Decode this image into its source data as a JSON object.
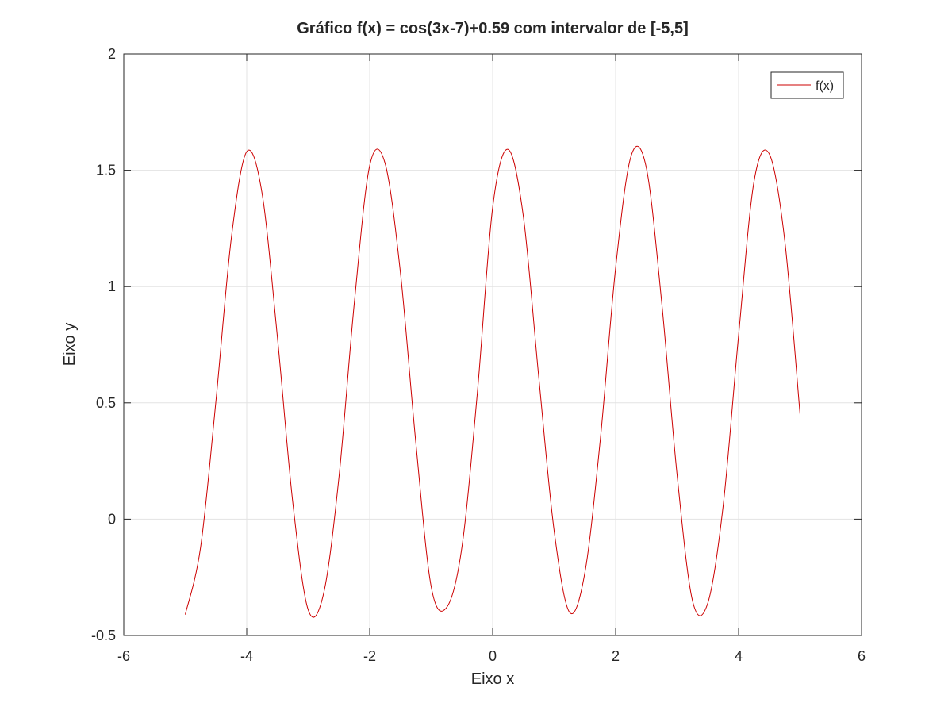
{
  "chart_data": {
    "type": "line",
    "title": "Gráfico f(x) = cos(3x-7)+0.59 com intervalor de [-5,5]",
    "xlabel": "Eixo x",
    "ylabel": "Eixo y",
    "xlim": [
      -6,
      6
    ],
    "ylim": [
      -0.5,
      2
    ],
    "x_ticks": [
      -6,
      -4,
      -2,
      0,
      2,
      4,
      6
    ],
    "x_tick_labels": [
      "-6",
      "-4",
      "-2",
      "0",
      "2",
      "4",
      "6"
    ],
    "y_ticks": [
      -0.5,
      0,
      0.5,
      1,
      1.5,
      2
    ],
    "y_tick_labels": [
      "-0.5",
      "0",
      "0.5",
      "1",
      "1.5",
      "2"
    ],
    "grid": true,
    "legend": {
      "placement": "top-right",
      "entries": [
        "f(x)"
      ]
    },
    "series": [
      {
        "name": "f(x)",
        "color": "#cc0000",
        "function": "cos(3x-7)+0.59",
        "domain": [
          -5,
          5
        ],
        "x": [
          -5,
          -4.75,
          -4.5,
          -4.25,
          -4,
          -3.75,
          -3.5,
          -3.25,
          -3,
          -2.75,
          -2.5,
          -2.25,
          -2,
          -1.75,
          -1.5,
          -1.25,
          -1,
          -0.75,
          -0.5,
          -0.25,
          0,
          0.25,
          0.5,
          0.75,
          1,
          1.25,
          1.5,
          1.75,
          2,
          2.25,
          2.5,
          2.75,
          3,
          3.25,
          3.5,
          3.75,
          4,
          4.25,
          4.5,
          4.75,
          5
        ],
        "y": [
          -0.41,
          -0.12,
          0.51,
          1.21,
          1.58,
          1.4,
          0.78,
          0.07,
          -0.39,
          -0.32,
          0.18,
          0.93,
          1.52,
          1.53,
          1.06,
          0.33,
          -0.29,
          -0.38,
          -0.12,
          0.54,
          1.34,
          1.59,
          1.3,
          0.61,
          -0.05,
          -0.4,
          -0.23,
          0.34,
          1.08,
          1.56,
          1.51,
          0.93,
          0.19,
          -0.35,
          -0.36,
          0.06,
          0.79,
          1.45,
          1.57,
          1.2,
          0.45
        ]
      }
    ]
  }
}
